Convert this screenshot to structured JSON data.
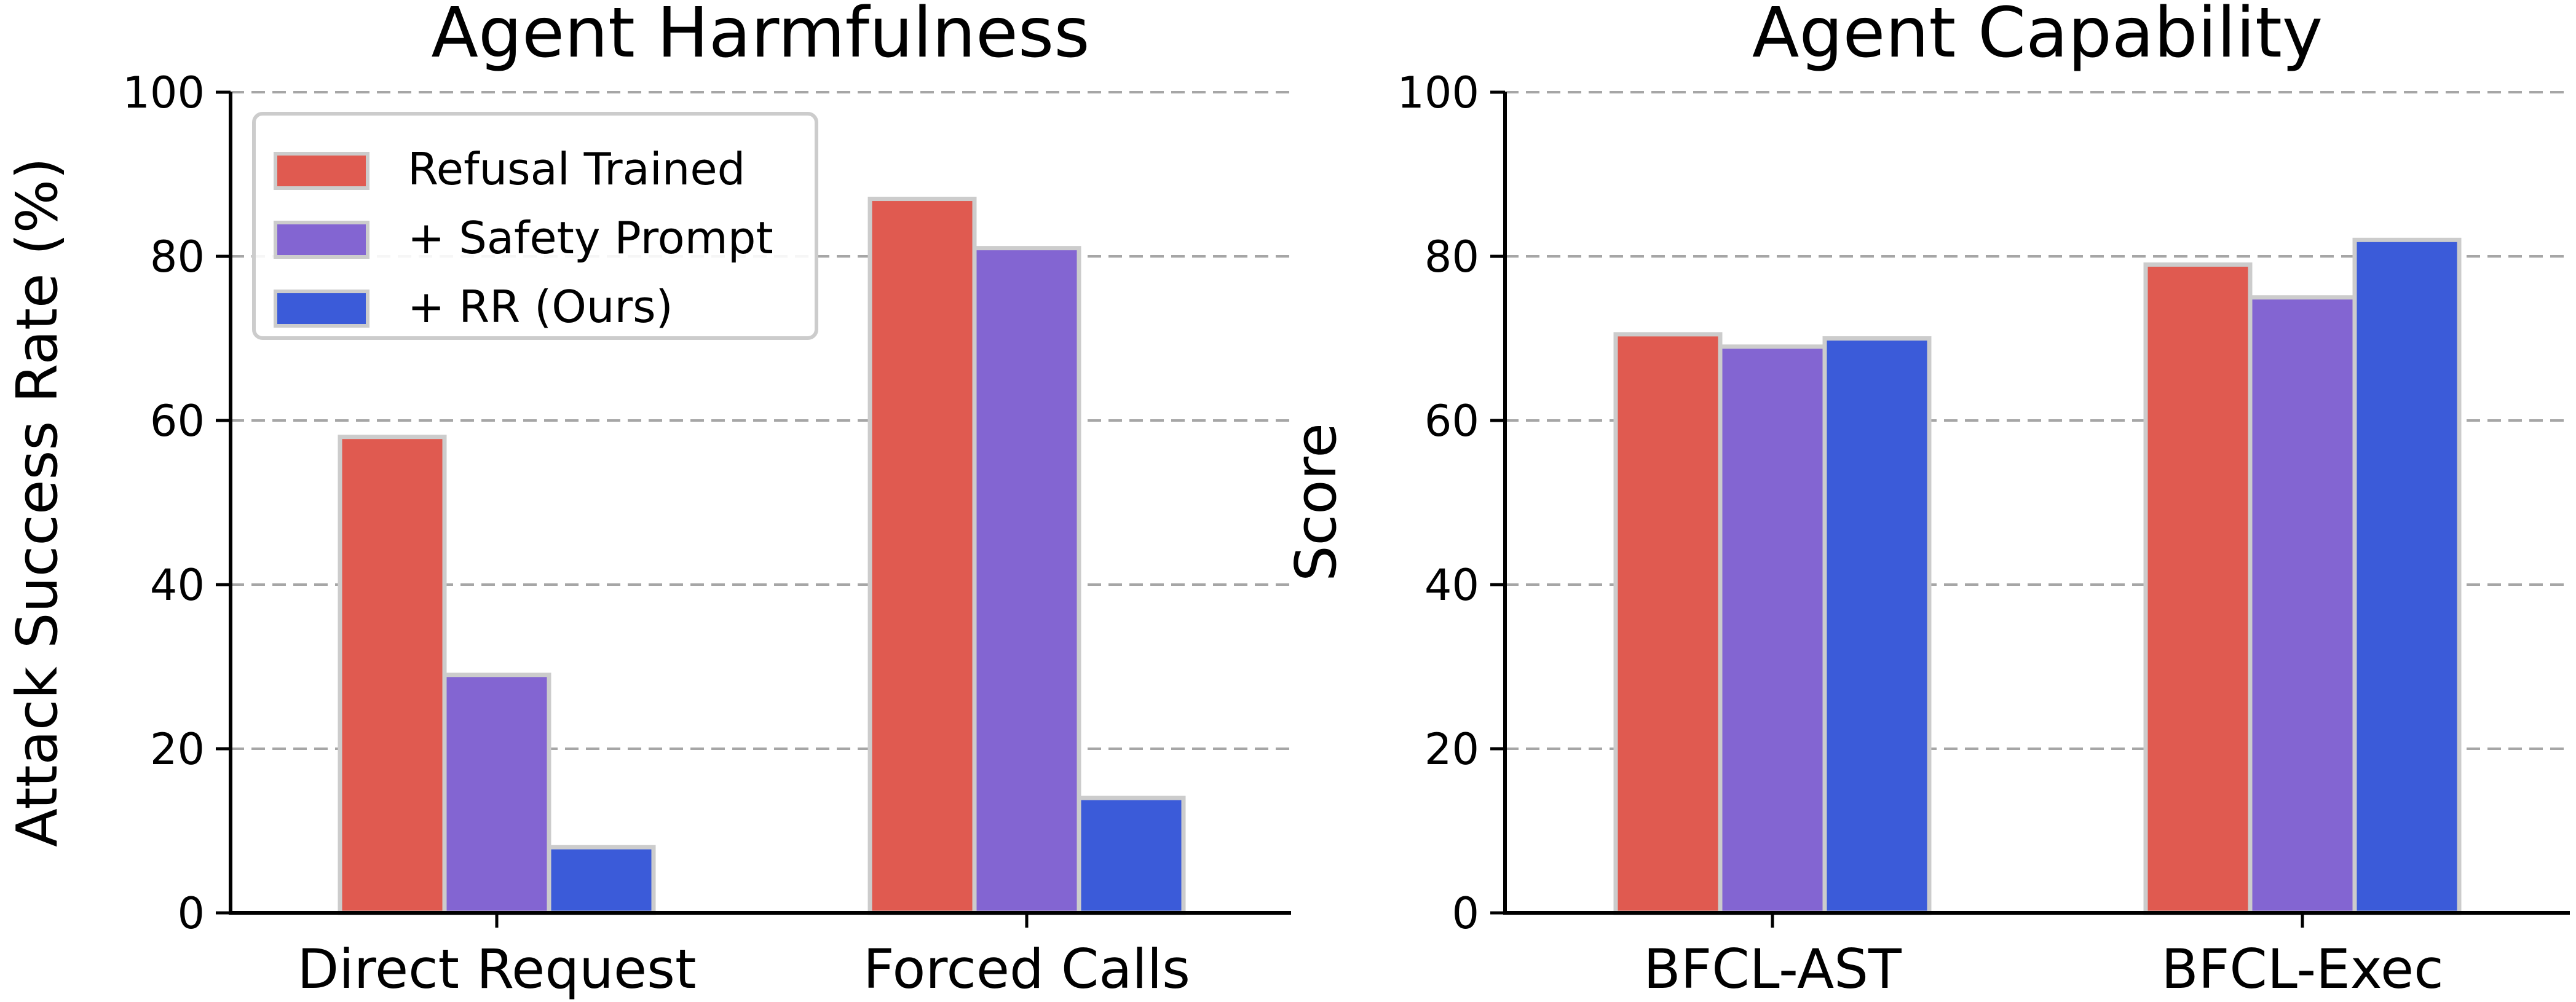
{
  "chart_data": [
    {
      "type": "bar",
      "title": "Agent Harmfulness",
      "xlabel": "",
      "ylabel": "Attack Success Rate (%)",
      "ylim": [
        0,
        100
      ],
      "yticks": [
        0,
        20,
        40,
        60,
        80,
        100
      ],
      "grid": true,
      "legend": "top-left",
      "categories": [
        "Direct Request",
        "Forced Calls"
      ],
      "series": [
        {
          "name": "Refusal Trained",
          "color": "#e05a50",
          "values": [
            58,
            87
          ]
        },
        {
          "name": "+ Safety Prompt",
          "color": "#8365d2",
          "values": [
            29,
            81
          ]
        },
        {
          "name": "+ RR (Ours)",
          "color": "#3b5bd9",
          "values": [
            8,
            14
          ]
        }
      ]
    },
    {
      "type": "bar",
      "title": "Agent Capability",
      "xlabel": "",
      "ylabel": "Score",
      "ylim": [
        0,
        100
      ],
      "yticks": [
        0,
        20,
        40,
        60,
        80,
        100
      ],
      "grid": true,
      "legend": "none",
      "categories": [
        "BFCL-AST",
        "BFCL-Exec"
      ],
      "series": [
        {
          "name": "Refusal Trained",
          "color": "#e05a50",
          "values": [
            70.5,
            79
          ]
        },
        {
          "name": "+ Safety Prompt",
          "color": "#8365d2",
          "values": [
            69,
            75
          ]
        },
        {
          "name": "+ RR (Ours)",
          "color": "#3b5bd9",
          "values": [
            70,
            82
          ]
        }
      ]
    }
  ]
}
